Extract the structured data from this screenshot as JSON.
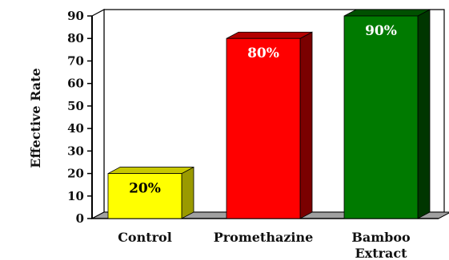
{
  "chart_data": {
    "type": "bar",
    "categories": [
      "Control",
      "Promethazine",
      "Bamboo Extract"
    ],
    "category_lines": [
      [
        "Control"
      ],
      [
        "Promethazine"
      ],
      [
        "Bamboo",
        "Extract"
      ]
    ],
    "values": [
      20,
      80,
      90
    ],
    "data_labels": [
      "20%",
      "80%",
      "90%"
    ],
    "ylabel": "Effective Rate",
    "xlabel": "",
    "ylim": [
      0,
      90
    ],
    "yticks": [
      0,
      10,
      20,
      30,
      40,
      50,
      60,
      70,
      80,
      90
    ],
    "style": "3d-bar",
    "grid": false
  },
  "colors": {
    "bars": [
      {
        "face": "#ffff00",
        "side": "#9a9a00",
        "top": "#c8c800",
        "label": "#000000"
      },
      {
        "face": "#ff0000",
        "side": "#7a0000",
        "top": "#b30000",
        "label": "#ffffff"
      },
      {
        "face": "#007a00",
        "side": "#003600",
        "top": "#005000",
        "label": "#ffffff"
      }
    ],
    "floor": "#a0a0a0",
    "wall": "#ffffff",
    "axis": "#000000"
  }
}
